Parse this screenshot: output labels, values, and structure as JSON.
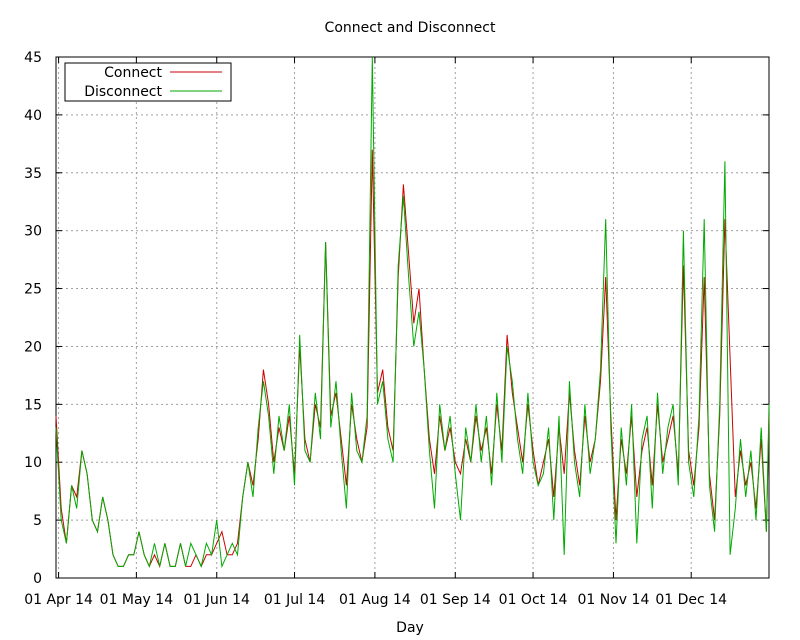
{
  "chart_data": {
    "type": "line",
    "title": "Connect and Disconnect",
    "xlabel": "Day",
    "ylabel": "",
    "ylim": [
      0,
      45
    ],
    "xlim": [
      "2014-03-31",
      "2014-12-31"
    ],
    "grid": true,
    "legend": "top-left",
    "y_ticks": [
      0,
      5,
      10,
      15,
      20,
      25,
      30,
      35,
      40,
      45
    ],
    "x_ticks": [
      {
        "date": "2014-04-01",
        "label": "01 Apr 14"
      },
      {
        "date": "2014-05-01",
        "label": "01 May 14"
      },
      {
        "date": "2014-06-01",
        "label": "01 Jun 14"
      },
      {
        "date": "2014-07-01",
        "label": "01 Jul 14"
      },
      {
        "date": "2014-08-01",
        "label": "01 Aug 14"
      },
      {
        "date": "2014-09-01",
        "label": "01 Sep 14"
      },
      {
        "date": "2014-10-01",
        "label": "01 Oct 14"
      },
      {
        "date": "2014-11-01",
        "label": "01 Nov 14"
      },
      {
        "date": "2014-12-01",
        "label": "01 Dec 14"
      }
    ],
    "series": [
      {
        "name": "Connect",
        "color": "#cc0000",
        "points": [
          [
            "2014-03-31",
            14
          ],
          [
            "2014-04-02",
            6
          ],
          [
            "2014-04-04",
            3
          ],
          [
            "2014-04-06",
            8
          ],
          [
            "2014-04-08",
            7
          ],
          [
            "2014-04-10",
            11
          ],
          [
            "2014-04-12",
            9
          ],
          [
            "2014-04-14",
            5
          ],
          [
            "2014-04-16",
            4
          ],
          [
            "2014-04-18",
            7
          ],
          [
            "2014-04-20",
            5
          ],
          [
            "2014-04-22",
            2
          ],
          [
            "2014-04-24",
            1
          ],
          [
            "2014-04-26",
            1
          ],
          [
            "2014-04-28",
            2
          ],
          [
            "2014-04-30",
            2
          ],
          [
            "2014-05-02",
            4
          ],
          [
            "2014-05-04",
            2
          ],
          [
            "2014-05-06",
            1
          ],
          [
            "2014-05-08",
            2
          ],
          [
            "2014-05-10",
            1
          ],
          [
            "2014-05-12",
            3
          ],
          [
            "2014-05-14",
            1
          ],
          [
            "2014-05-16",
            1
          ],
          [
            "2014-05-18",
            3
          ],
          [
            "2014-05-20",
            1
          ],
          [
            "2014-05-22",
            1
          ],
          [
            "2014-05-24",
            2
          ],
          [
            "2014-05-26",
            1
          ],
          [
            "2014-05-28",
            2
          ],
          [
            "2014-05-30",
            2
          ],
          [
            "2014-06-01",
            3
          ],
          [
            "2014-06-03",
            4
          ],
          [
            "2014-06-05",
            2
          ],
          [
            "2014-06-07",
            2
          ],
          [
            "2014-06-09",
            3
          ],
          [
            "2014-06-11",
            7
          ],
          [
            "2014-06-13",
            10
          ],
          [
            "2014-06-15",
            8
          ],
          [
            "2014-06-17",
            12
          ],
          [
            "2014-06-19",
            18
          ],
          [
            "2014-06-21",
            15
          ],
          [
            "2014-06-23",
            10
          ],
          [
            "2014-06-25",
            13
          ],
          [
            "2014-06-27",
            11
          ],
          [
            "2014-06-29",
            14
          ],
          [
            "2014-07-01",
            9
          ],
          [
            "2014-07-03",
            20
          ],
          [
            "2014-07-05",
            12
          ],
          [
            "2014-07-07",
            10
          ],
          [
            "2014-07-09",
            15
          ],
          [
            "2014-07-11",
            13
          ],
          [
            "2014-07-13",
            29
          ],
          [
            "2014-07-15",
            14
          ],
          [
            "2014-07-17",
            16
          ],
          [
            "2014-07-19",
            12
          ],
          [
            "2014-07-21",
            8
          ],
          [
            "2014-07-23",
            15
          ],
          [
            "2014-07-25",
            12
          ],
          [
            "2014-07-27",
            10
          ],
          [
            "2014-07-29",
            13
          ],
          [
            "2014-07-31",
            37
          ],
          [
            "2014-08-02",
            16
          ],
          [
            "2014-08-04",
            18
          ],
          [
            "2014-08-06",
            13
          ],
          [
            "2014-08-08",
            11
          ],
          [
            "2014-08-10",
            26
          ],
          [
            "2014-08-12",
            34
          ],
          [
            "2014-08-14",
            28
          ],
          [
            "2014-08-16",
            22
          ],
          [
            "2014-08-18",
            25
          ],
          [
            "2014-08-20",
            18
          ],
          [
            "2014-08-22",
            12
          ],
          [
            "2014-08-24",
            9
          ],
          [
            "2014-08-26",
            14
          ],
          [
            "2014-08-28",
            11
          ],
          [
            "2014-08-30",
            13
          ],
          [
            "2014-09-01",
            10
          ],
          [
            "2014-09-03",
            9
          ],
          [
            "2014-09-05",
            12
          ],
          [
            "2014-09-07",
            10
          ],
          [
            "2014-09-09",
            14
          ],
          [
            "2014-09-11",
            11
          ],
          [
            "2014-09-13",
            13
          ],
          [
            "2014-09-15",
            9
          ],
          [
            "2014-09-17",
            15
          ],
          [
            "2014-09-19",
            11
          ],
          [
            "2014-09-21",
            21
          ],
          [
            "2014-09-23",
            16
          ],
          [
            "2014-09-25",
            13
          ],
          [
            "2014-09-27",
            10
          ],
          [
            "2014-09-29",
            15
          ],
          [
            "2014-10-01",
            11
          ],
          [
            "2014-10-03",
            8
          ],
          [
            "2014-10-05",
            10
          ],
          [
            "2014-10-07",
            12
          ],
          [
            "2014-10-09",
            7
          ],
          [
            "2014-10-11",
            13
          ],
          [
            "2014-10-13",
            9
          ],
          [
            "2014-10-15",
            16
          ],
          [
            "2014-10-17",
            11
          ],
          [
            "2014-10-19",
            8
          ],
          [
            "2014-10-21",
            14
          ],
          [
            "2014-10-23",
            10
          ],
          [
            "2014-10-25",
            12
          ],
          [
            "2014-10-27",
            17
          ],
          [
            "2014-10-29",
            26
          ],
          [
            "2014-10-31",
            14
          ],
          [
            "2014-11-02",
            5
          ],
          [
            "2014-11-04",
            12
          ],
          [
            "2014-11-06",
            9
          ],
          [
            "2014-11-08",
            14
          ],
          [
            "2014-11-10",
            7
          ],
          [
            "2014-11-12",
            11
          ],
          [
            "2014-11-14",
            13
          ],
          [
            "2014-11-16",
            8
          ],
          [
            "2014-11-18",
            15
          ],
          [
            "2014-11-20",
            10
          ],
          [
            "2014-11-22",
            12
          ],
          [
            "2014-11-24",
            14
          ],
          [
            "2014-11-26",
            9
          ],
          [
            "2014-11-28",
            27
          ],
          [
            "2014-11-30",
            11
          ],
          [
            "2014-12-02",
            8
          ],
          [
            "2014-12-04",
            13
          ],
          [
            "2014-12-06",
            26
          ],
          [
            "2014-12-08",
            9
          ],
          [
            "2014-12-10",
            5
          ],
          [
            "2014-12-12",
            14
          ],
          [
            "2014-12-14",
            31
          ],
          [
            "2014-12-16",
            19
          ],
          [
            "2014-12-18",
            7
          ],
          [
            "2014-12-20",
            11
          ],
          [
            "2014-12-22",
            8
          ],
          [
            "2014-12-24",
            10
          ],
          [
            "2014-12-26",
            6
          ],
          [
            "2014-12-28",
            12
          ],
          [
            "2014-12-30",
            4
          ],
          [
            "2014-12-31",
            14
          ]
        ]
      },
      {
        "name": "Disconnect",
        "color": "#00aa00",
        "points": [
          [
            "2014-03-31",
            13
          ],
          [
            "2014-04-02",
            5
          ],
          [
            "2014-04-04",
            3
          ],
          [
            "2014-04-06",
            8
          ],
          [
            "2014-04-08",
            6
          ],
          [
            "2014-04-10",
            11
          ],
          [
            "2014-04-12",
            9
          ],
          [
            "2014-04-14",
            5
          ],
          [
            "2014-04-16",
            4
          ],
          [
            "2014-04-18",
            7
          ],
          [
            "2014-04-20",
            5
          ],
          [
            "2014-04-22",
            2
          ],
          [
            "2014-04-24",
            1
          ],
          [
            "2014-04-26",
            1
          ],
          [
            "2014-04-28",
            2
          ],
          [
            "2014-04-30",
            2
          ],
          [
            "2014-05-02",
            4
          ],
          [
            "2014-05-04",
            2
          ],
          [
            "2014-05-06",
            1
          ],
          [
            "2014-05-08",
            3
          ],
          [
            "2014-05-10",
            1
          ],
          [
            "2014-05-12",
            3
          ],
          [
            "2014-05-14",
            1
          ],
          [
            "2014-05-16",
            1
          ],
          [
            "2014-05-18",
            3
          ],
          [
            "2014-05-20",
            1
          ],
          [
            "2014-05-22",
            3
          ],
          [
            "2014-05-24",
            2
          ],
          [
            "2014-05-26",
            1
          ],
          [
            "2014-05-28",
            3
          ],
          [
            "2014-05-30",
            2
          ],
          [
            "2014-06-01",
            5
          ],
          [
            "2014-06-03",
            1
          ],
          [
            "2014-06-05",
            2
          ],
          [
            "2014-06-07",
            3
          ],
          [
            "2014-06-09",
            2
          ],
          [
            "2014-06-11",
            7
          ],
          [
            "2014-06-13",
            10
          ],
          [
            "2014-06-15",
            7
          ],
          [
            "2014-06-17",
            13
          ],
          [
            "2014-06-19",
            17
          ],
          [
            "2014-06-21",
            14
          ],
          [
            "2014-06-23",
            9
          ],
          [
            "2014-06-25",
            14
          ],
          [
            "2014-06-27",
            11
          ],
          [
            "2014-06-29",
            15
          ],
          [
            "2014-07-01",
            8
          ],
          [
            "2014-07-03",
            21
          ],
          [
            "2014-07-05",
            11
          ],
          [
            "2014-07-07",
            10
          ],
          [
            "2014-07-09",
            16
          ],
          [
            "2014-07-11",
            12
          ],
          [
            "2014-07-13",
            29
          ],
          [
            "2014-07-15",
            13
          ],
          [
            "2014-07-17",
            17
          ],
          [
            "2014-07-19",
            11
          ],
          [
            "2014-07-21",
            6
          ],
          [
            "2014-07-23",
            16
          ],
          [
            "2014-07-25",
            11
          ],
          [
            "2014-07-27",
            10
          ],
          [
            "2014-07-29",
            14
          ],
          [
            "2014-07-31",
            45
          ],
          [
            "2014-08-02",
            15
          ],
          [
            "2014-08-04",
            17
          ],
          [
            "2014-08-06",
            12
          ],
          [
            "2014-08-08",
            10
          ],
          [
            "2014-08-10",
            27
          ],
          [
            "2014-08-12",
            33
          ],
          [
            "2014-08-14",
            26
          ],
          [
            "2014-08-16",
            20
          ],
          [
            "2014-08-18",
            23
          ],
          [
            "2014-08-20",
            18
          ],
          [
            "2014-08-22",
            11
          ],
          [
            "2014-08-24",
            6
          ],
          [
            "2014-08-26",
            15
          ],
          [
            "2014-08-28",
            11
          ],
          [
            "2014-08-30",
            14
          ],
          [
            "2014-09-01",
            9
          ],
          [
            "2014-09-03",
            5
          ],
          [
            "2014-09-05",
            13
          ],
          [
            "2014-09-07",
            10
          ],
          [
            "2014-09-09",
            15
          ],
          [
            "2014-09-11",
            10
          ],
          [
            "2014-09-13",
            14
          ],
          [
            "2014-09-15",
            8
          ],
          [
            "2014-09-17",
            16
          ],
          [
            "2014-09-19",
            10
          ],
          [
            "2014-09-21",
            20
          ],
          [
            "2014-09-23",
            17
          ],
          [
            "2014-09-25",
            12
          ],
          [
            "2014-09-27",
            9
          ],
          [
            "2014-09-29",
            16
          ],
          [
            "2014-10-01",
            10
          ],
          [
            "2014-10-03",
            8
          ],
          [
            "2014-10-05",
            9
          ],
          [
            "2014-10-07",
            13
          ],
          [
            "2014-10-09",
            5
          ],
          [
            "2014-10-11",
            14
          ],
          [
            "2014-10-13",
            2
          ],
          [
            "2014-10-15",
            17
          ],
          [
            "2014-10-17",
            10
          ],
          [
            "2014-10-19",
            7
          ],
          [
            "2014-10-21",
            15
          ],
          [
            "2014-10-23",
            9
          ],
          [
            "2014-10-25",
            12
          ],
          [
            "2014-10-27",
            18
          ],
          [
            "2014-10-29",
            31
          ],
          [
            "2014-10-31",
            13
          ],
          [
            "2014-11-02",
            3
          ],
          [
            "2014-11-04",
            13
          ],
          [
            "2014-11-06",
            8
          ],
          [
            "2014-11-08",
            15
          ],
          [
            "2014-11-10",
            3
          ],
          [
            "2014-11-12",
            12
          ],
          [
            "2014-11-14",
            14
          ],
          [
            "2014-11-16",
            6
          ],
          [
            "2014-11-18",
            16
          ],
          [
            "2014-11-20",
            9
          ],
          [
            "2014-11-22",
            13
          ],
          [
            "2014-11-24",
            15
          ],
          [
            "2014-11-26",
            8
          ],
          [
            "2014-11-28",
            30
          ],
          [
            "2014-11-30",
            10
          ],
          [
            "2014-12-02",
            7
          ],
          [
            "2014-12-04",
            14
          ],
          [
            "2014-12-06",
            31
          ],
          [
            "2014-12-08",
            8
          ],
          [
            "2014-12-10",
            4
          ],
          [
            "2014-12-12",
            15
          ],
          [
            "2014-12-14",
            36
          ],
          [
            "2014-12-16",
            2
          ],
          [
            "2014-12-18",
            6
          ],
          [
            "2014-12-20",
            12
          ],
          [
            "2014-12-22",
            7
          ],
          [
            "2014-12-24",
            11
          ],
          [
            "2014-12-26",
            5
          ],
          [
            "2014-12-28",
            13
          ],
          [
            "2014-12-30",
            4
          ],
          [
            "2014-12-31",
            15
          ]
        ]
      }
    ]
  }
}
